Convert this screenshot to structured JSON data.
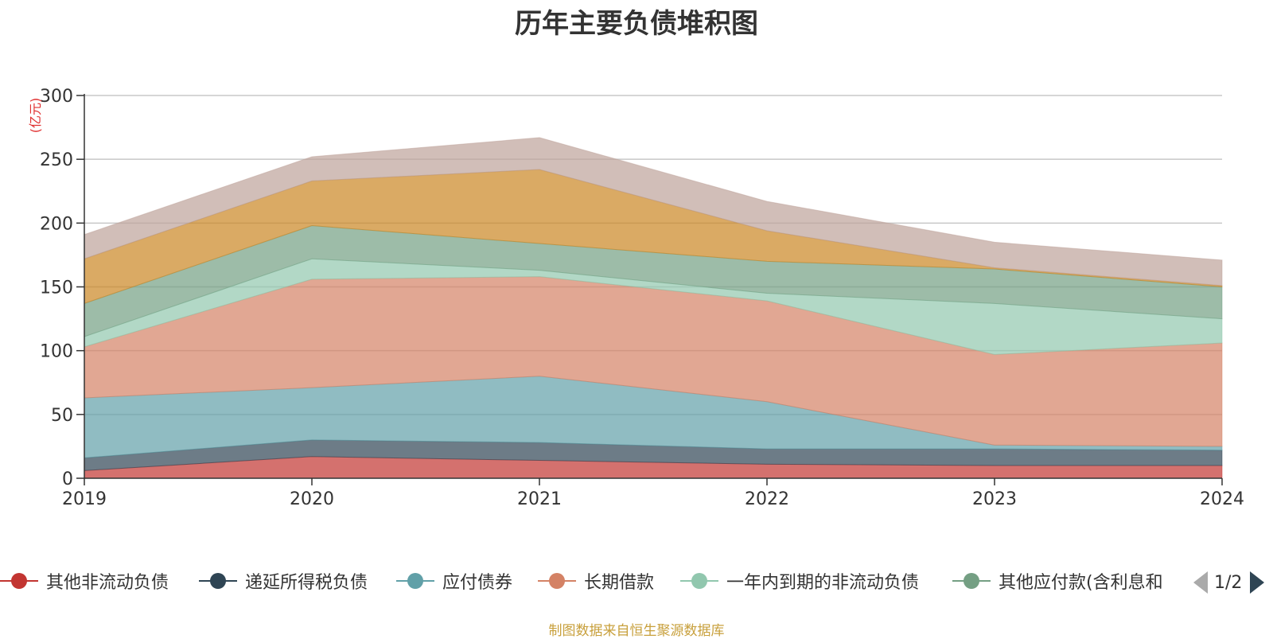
{
  "chart_data": {
    "type": "area",
    "stacked": true,
    "title": "历年主要负债堆积图",
    "ylabel": "(亿元)",
    "ylim": [
      0,
      300
    ],
    "yticks": [
      0,
      50,
      100,
      150,
      200,
      250,
      300
    ],
    "categories": [
      "2019",
      "2020",
      "2021",
      "2022",
      "2023",
      "2024"
    ],
    "series": [
      {
        "name": "其他非流动负债",
        "color": "#c23531",
        "values": [
          6,
          17,
          14,
          11,
          10,
          10
        ]
      },
      {
        "name": "递延所得税负债",
        "color": "#2f4554",
        "values": [
          10,
          13,
          14,
          12,
          13,
          12
        ]
      },
      {
        "name": "应付债券",
        "color": "#61a0a8",
        "values": [
          47,
          41,
          52,
          37,
          3,
          3
        ]
      },
      {
        "name": "长期借款",
        "color": "#d48265",
        "values": [
          40,
          85,
          78,
          79,
          71,
          81
        ]
      },
      {
        "name": "一年内到期的非流动负债",
        "color": "#91c7ae",
        "values": [
          8,
          16,
          5,
          6,
          40,
          19
        ]
      },
      {
        "name": "其他应付款(含利息和",
        "color": "#749f83",
        "values": [
          26,
          26,
          21,
          25,
          27,
          25
        ]
      },
      {
        "name": "",
        "color": "#ca8622",
        "values": [
          35,
          35,
          58,
          24,
          1,
          1
        ]
      },
      {
        "name": "",
        "color": "#bda29a",
        "values": [
          19,
          19,
          25,
          23,
          20,
          20
        ]
      }
    ],
    "legend_position": "bottom"
  },
  "legend": {
    "page": "1/2"
  },
  "footnote": "制图数据来自恒生聚源数据库"
}
